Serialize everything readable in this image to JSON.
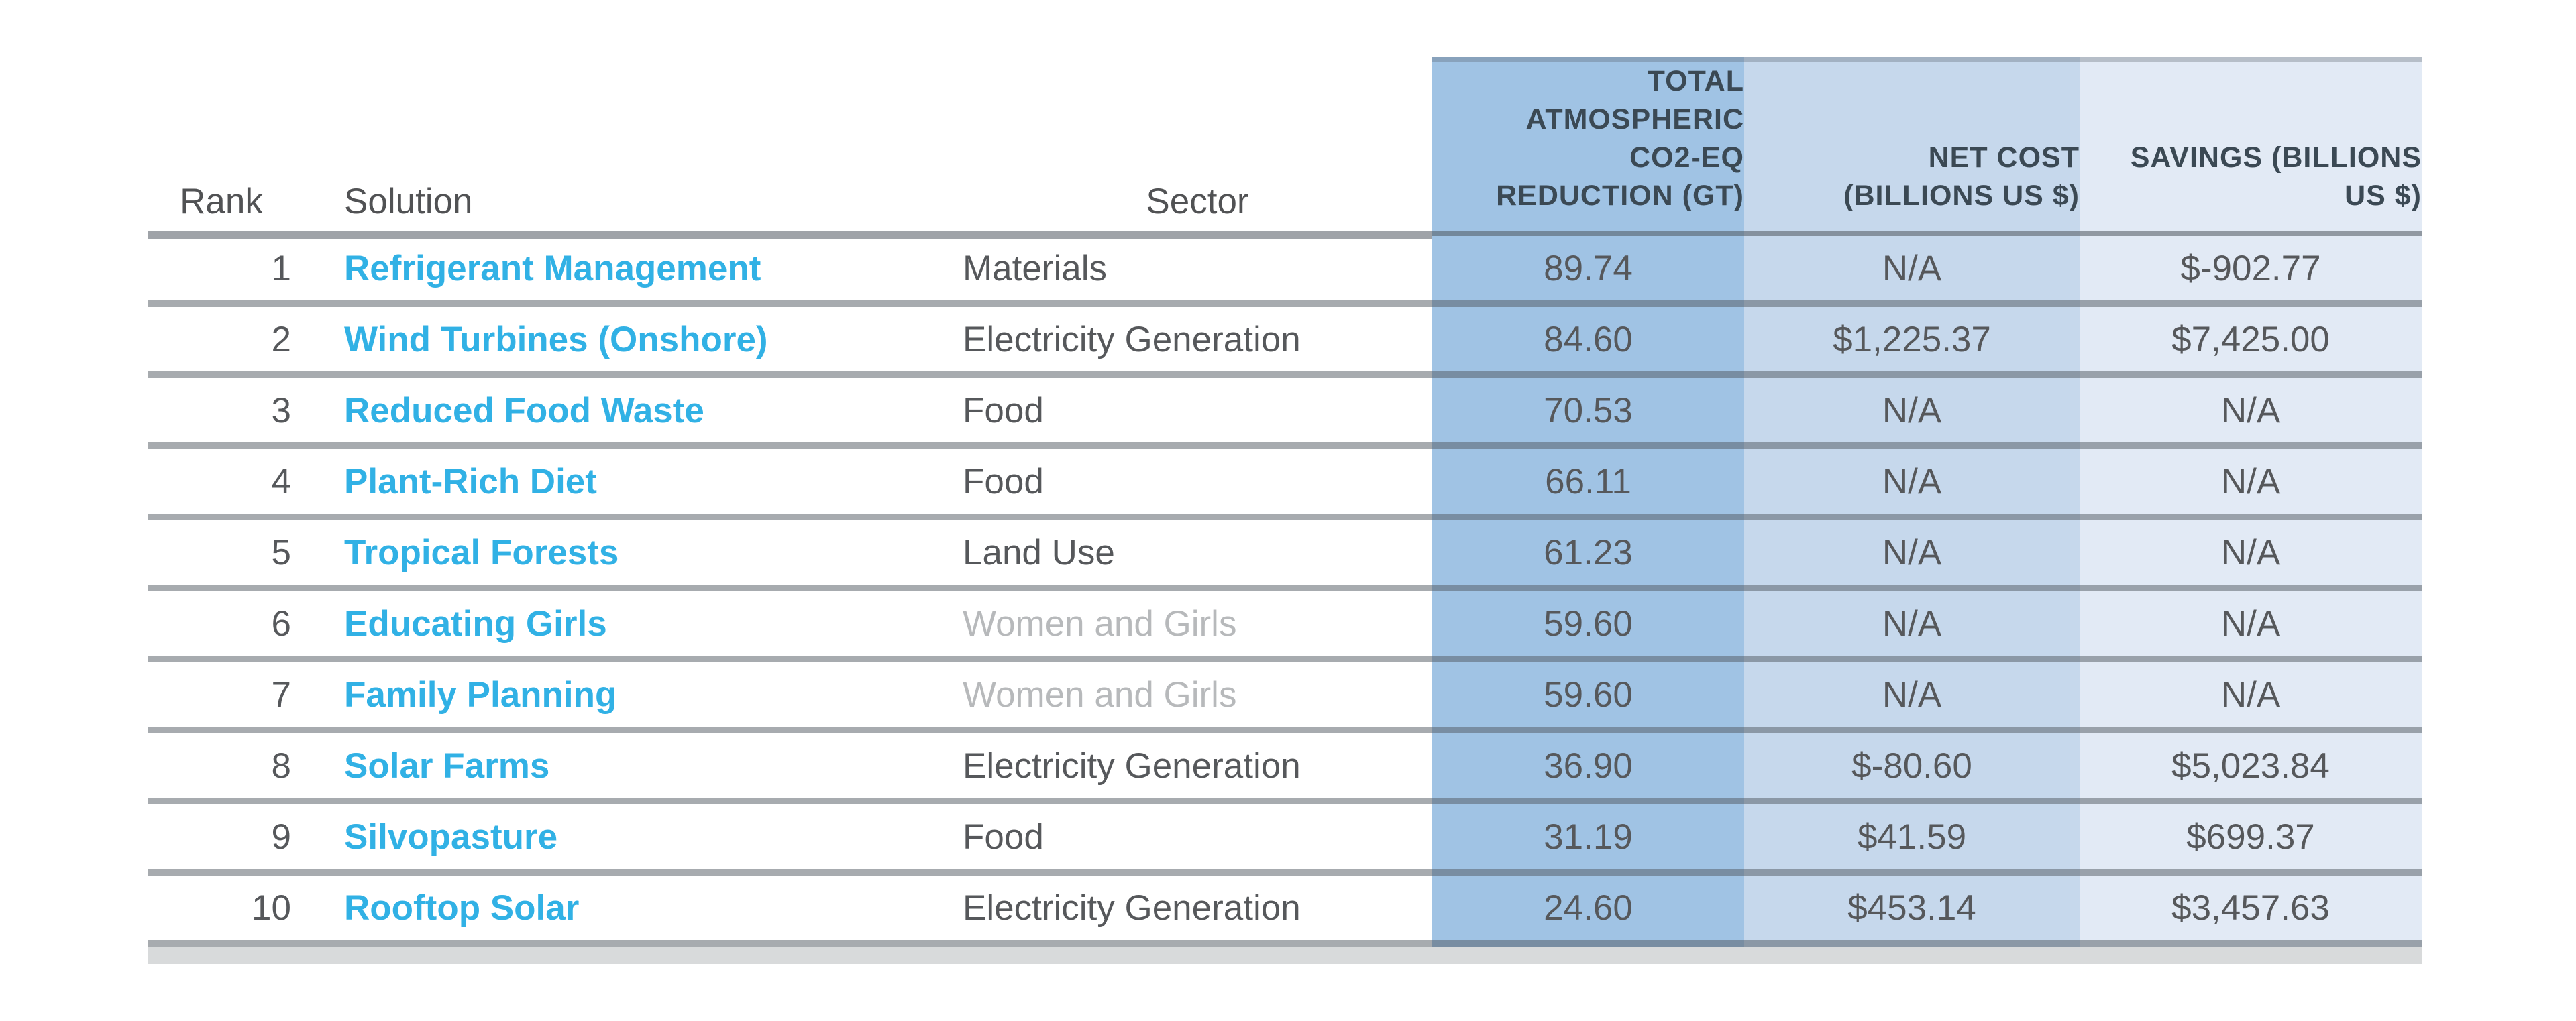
{
  "table": {
    "headers": {
      "rank": "Rank",
      "solution": "Solution",
      "sector": "Sector",
      "co2_lines": [
        "TOTAL",
        "ATMOSPHERIC",
        "CO2-EQ",
        "REDUCTION (GT)"
      ],
      "net_cost_lines": [
        "NET COST",
        "(BILLIONS US $)"
      ],
      "savings_lines": [
        "SAVINGS (BILLIONS",
        "US $)"
      ]
    },
    "rows": [
      {
        "rank": "1",
        "solution": "Refrigerant Management",
        "sector": "Materials",
        "sector_muted": false,
        "co2": "89.74",
        "net_cost": "N/A",
        "savings": "$-902.77"
      },
      {
        "rank": "2",
        "solution": "Wind Turbines (Onshore)",
        "sector": "Electricity Generation",
        "sector_muted": false,
        "co2": "84.60",
        "net_cost": "$1,225.37",
        "savings": "$7,425.00"
      },
      {
        "rank": "3",
        "solution": "Reduced Food Waste",
        "sector": "Food",
        "sector_muted": false,
        "co2": "70.53",
        "net_cost": "N/A",
        "savings": "N/A"
      },
      {
        "rank": "4",
        "solution": "Plant-Rich Diet",
        "sector": "Food",
        "sector_muted": false,
        "co2": "66.11",
        "net_cost": "N/A",
        "savings": "N/A"
      },
      {
        "rank": "5",
        "solution": "Tropical Forests",
        "sector": "Land Use",
        "sector_muted": false,
        "co2": "61.23",
        "net_cost": "N/A",
        "savings": "N/A"
      },
      {
        "rank": "6",
        "solution": "Educating Girls",
        "sector": "Women and Girls",
        "sector_muted": true,
        "co2": "59.60",
        "net_cost": "N/A",
        "savings": "N/A"
      },
      {
        "rank": "7",
        "solution": "Family Planning",
        "sector": "Women and Girls",
        "sector_muted": true,
        "co2": "59.60",
        "net_cost": "N/A",
        "savings": "N/A"
      },
      {
        "rank": "8",
        "solution": "Solar Farms",
        "sector": "Electricity Generation",
        "sector_muted": false,
        "co2": "36.90",
        "net_cost": "$-80.60",
        "savings": "$5,023.84"
      },
      {
        "rank": "9",
        "solution": "Silvopasture",
        "sector": "Food",
        "sector_muted": false,
        "co2": "31.19",
        "net_cost": "$41.59",
        "savings": "$699.37"
      },
      {
        "rank": "10",
        "solution": "Rooftop Solar",
        "sector": "Electricity Generation",
        "sector_muted": false,
        "co2": "24.60",
        "net_cost": "$453.14",
        "savings": "$3,457.63"
      }
    ]
  },
  "colors": {
    "solution_link": "#31b1e5",
    "co2_column_bg": "#a0c3e4",
    "net_cost_column_bg": "#c6d8ec",
    "savings_column_bg": "#e2eaf5",
    "muted_sector_text": "#b7b9bb"
  }
}
